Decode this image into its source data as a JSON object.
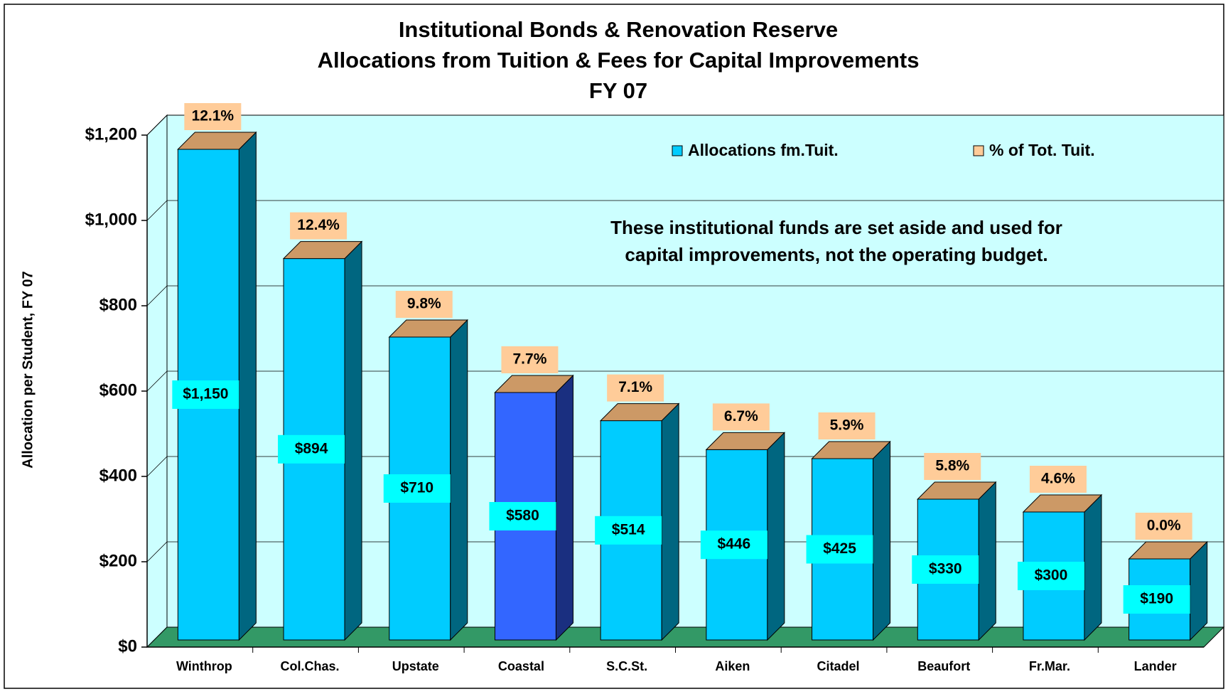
{
  "chart_data": {
    "type": "bar",
    "title": [
      "Institutional Bonds & Renovation Reserve",
      "Allocations from Tuition & Fees for Capital Improvements",
      "FY 07"
    ],
    "ylabel": "Allocation per Student, FY 07",
    "annotation": [
      "These institutional funds are set aside and used for",
      "capital improvements, not the operating budget."
    ],
    "categories": [
      "Winthrop",
      "Col.Chas.",
      "Upstate",
      "Coastal",
      "S.C.St.",
      "Aiken",
      "Citadel",
      "Beaufort",
      "Fr.Mar.",
      "Lander"
    ],
    "series": [
      {
        "name": "Allocations fm.Tuit.",
        "color": "#00CCFF",
        "colors": [
          "#00CCFF",
          "#00CCFF",
          "#00CCFF",
          "#3366FF",
          "#00CCFF",
          "#00CCFF",
          "#00CCFF",
          "#00CCFF",
          "#00CCFF",
          "#00CCFF"
        ],
        "values": [
          1150,
          894,
          710,
          580,
          514,
          446,
          425,
          330,
          300,
          190
        ],
        "value_labels": [
          "$1,150",
          "$894",
          "$710",
          "$580",
          "$514",
          "$446",
          "$425",
          "$330",
          "$300",
          "$190"
        ]
      },
      {
        "name": "% of Tot. Tuit.",
        "color": "#FFCC99",
        "values": [
          12.1,
          12.4,
          9.8,
          7.7,
          7.1,
          6.7,
          5.9,
          5.8,
          4.6,
          0.0
        ],
        "value_labels": [
          "12.1%",
          "12.4%",
          "9.8%",
          "7.7%",
          "7.1%",
          "6.7%",
          "5.9%",
          "5.8%",
          "4.6%",
          "0.0%"
        ]
      }
    ],
    "ylim": [
      0,
      1200
    ],
    "yticks": [
      {
        "value": 0,
        "label": "$0"
      },
      {
        "value": 200,
        "label": "$200"
      },
      {
        "value": 400,
        "label": "$400"
      },
      {
        "value": 600,
        "label": "$600"
      },
      {
        "value": 800,
        "label": "$800"
      },
      {
        "value": 1000,
        "label": "$1,000"
      },
      {
        "value": 1200,
        "label": "$1,200"
      }
    ],
    "grid": true
  }
}
